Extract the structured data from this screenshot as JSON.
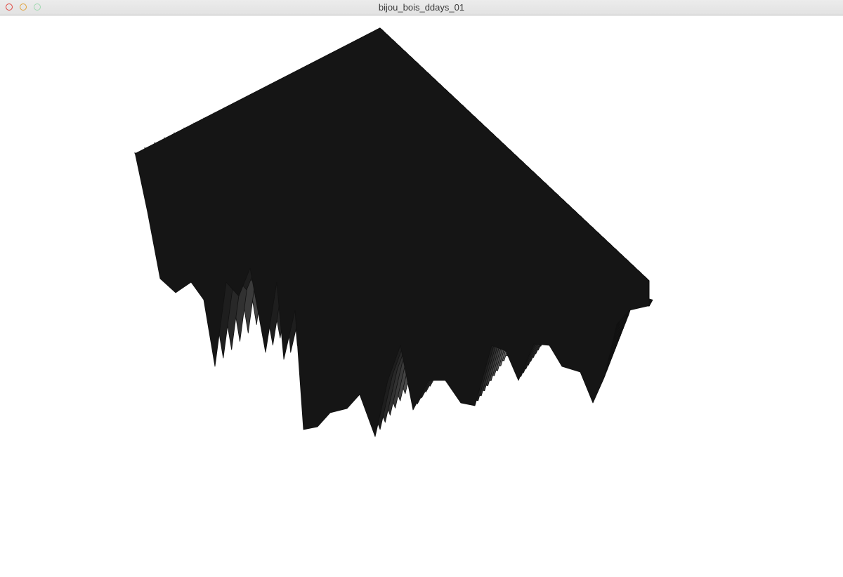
{
  "window": {
    "title": "bijou_bois_ddays_01",
    "controls": [
      "close",
      "minimize",
      "maximize"
    ]
  },
  "canvas": {
    "fill_gradient": [
      "#151515",
      "#ffffff"
    ],
    "stroke": "#111111",
    "background": "#ffffff"
  }
}
